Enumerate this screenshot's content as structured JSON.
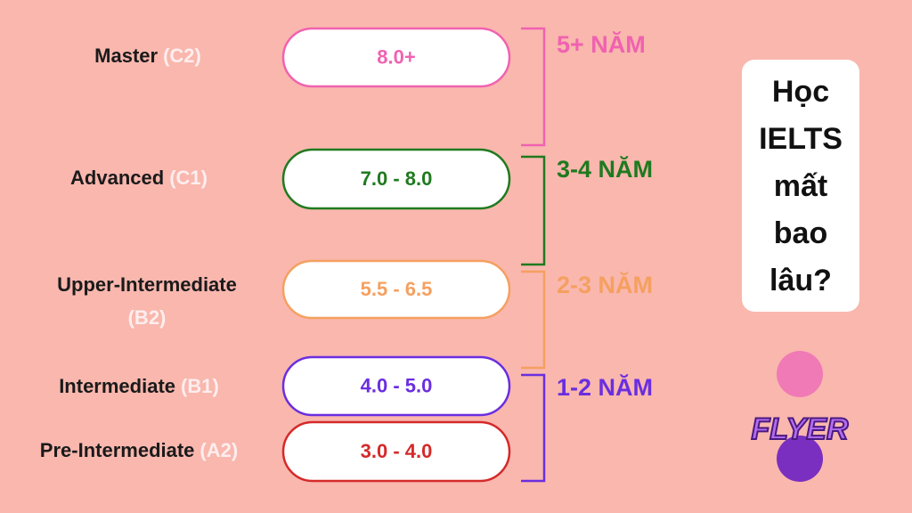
{
  "levels": [
    {
      "name": "Master",
      "code": "(C2)",
      "band": "8.0+",
      "color": "#f062b0"
    },
    {
      "name": "Advanced",
      "code": "(C1)",
      "band": "7.0 - 8.0",
      "color": "#1f7a1f"
    },
    {
      "name": "Upper-Intermediate",
      "code": "(B2)",
      "band": "5.5 - 6.5",
      "color": "#f5a060"
    },
    {
      "name": "Intermediate",
      "code": "(B1)",
      "band": "4.0 - 5.0",
      "color": "#6a2ee0"
    },
    {
      "name": "Pre-Intermediate",
      "code": "(A2)",
      "band": "3.0 - 4.0",
      "color": "#d42a2a"
    }
  ],
  "durations": [
    {
      "text": "5+ NĂM",
      "color": "#f062b0"
    },
    {
      "text": "3-4 NĂM",
      "color": "#1f7a1f"
    },
    {
      "text": "2-3 NĂM",
      "color": "#f5a060"
    },
    {
      "text": "1-2 NĂM",
      "color": "#6a2ee0"
    }
  ],
  "question": {
    "lines": [
      "Học",
      "IELTS",
      "mất",
      "bao",
      "lâu?"
    ]
  },
  "logo": {
    "text": "FLYER"
  }
}
